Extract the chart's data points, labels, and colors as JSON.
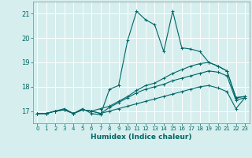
{
  "xlabel": "Humidex (Indice chaleur)",
  "background_color": "#d6eeee",
  "grid_color": "#ffffff",
  "line_color": "#006666",
  "xlim": [
    -0.5,
    23.5
  ],
  "ylim": [
    16.5,
    21.5
  ],
  "yticks": [
    17,
    18,
    19,
    20,
    21
  ],
  "xticks": [
    0,
    1,
    2,
    3,
    4,
    5,
    6,
    7,
    8,
    9,
    10,
    11,
    12,
    13,
    14,
    15,
    16,
    17,
    18,
    19,
    20,
    21,
    22,
    23
  ],
  "series": [
    {
      "x": [
        0,
        1,
        2,
        3,
        4,
        5,
        6,
        7,
        8,
        9,
        10,
        11,
        12,
        13,
        14,
        15,
        16,
        17,
        18,
        19,
        20,
        21,
        22,
        23
      ],
      "y": [
        16.9,
        16.9,
        17.0,
        17.1,
        16.9,
        17.1,
        16.9,
        16.85,
        17.9,
        18.05,
        19.9,
        21.1,
        20.75,
        20.55,
        19.45,
        21.1,
        19.6,
        19.55,
        19.45,
        19.0,
        18.85,
        18.65,
        17.55,
        17.6
      ]
    },
    {
      "x": [
        0,
        1,
        2,
        3,
        4,
        5,
        6,
        7,
        8,
        9,
        10,
        11,
        12,
        13,
        14,
        15,
        16,
        17,
        18,
        19,
        20,
        21,
        22,
        23
      ],
      "y": [
        16.9,
        16.9,
        17.0,
        17.05,
        16.9,
        17.05,
        17.0,
        17.1,
        17.2,
        17.4,
        17.6,
        17.85,
        18.05,
        18.15,
        18.35,
        18.55,
        18.7,
        18.85,
        18.95,
        19.0,
        18.85,
        18.65,
        17.55,
        17.6
      ]
    },
    {
      "x": [
        0,
        1,
        2,
        3,
        4,
        5,
        6,
        7,
        8,
        9,
        10,
        11,
        12,
        13,
        14,
        15,
        16,
        17,
        18,
        19,
        20,
        21,
        22,
        23
      ],
      "y": [
        16.9,
        16.9,
        17.0,
        17.05,
        16.9,
        17.05,
        17.0,
        16.9,
        17.15,
        17.35,
        17.55,
        17.75,
        17.9,
        18.0,
        18.1,
        18.25,
        18.35,
        18.45,
        18.55,
        18.65,
        18.6,
        18.45,
        17.45,
        17.55
      ]
    },
    {
      "x": [
        0,
        1,
        2,
        3,
        4,
        5,
        6,
        7,
        8,
        9,
        10,
        11,
        12,
        13,
        14,
        15,
        16,
        17,
        18,
        19,
        20,
        21,
        22,
        23
      ],
      "y": [
        16.9,
        16.9,
        17.0,
        17.05,
        16.9,
        17.05,
        17.0,
        16.9,
        17.0,
        17.1,
        17.2,
        17.3,
        17.4,
        17.5,
        17.6,
        17.7,
        17.8,
        17.9,
        18.0,
        18.05,
        17.95,
        17.8,
        17.1,
        17.55
      ]
    }
  ]
}
